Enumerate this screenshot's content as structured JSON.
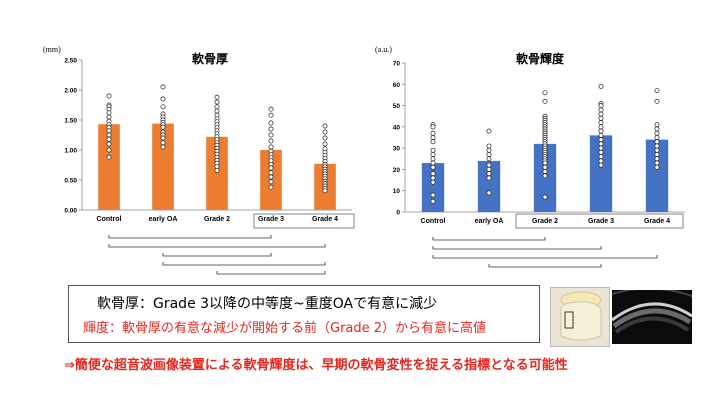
{
  "charts": {
    "left": {
      "unit": "(mm)",
      "title": "軟骨厚",
      "highlight_label": "Grade 3"
    },
    "right": {
      "unit": "(a.u.)",
      "title": "軟骨輝度",
      "highlight_label": "Grade 2"
    }
  },
  "chart_data": [
    {
      "type": "bar",
      "title": "軟骨厚",
      "ylabel": "(mm)",
      "categories": [
        "Control",
        "early OA",
        "Grade 2",
        "Grade 3",
        "Grade 4"
      ],
      "values": [
        1.43,
        1.44,
        1.22,
        1.0,
        0.77
      ],
      "ylim": [
        0,
        2.5
      ],
      "yticks": [
        0.0,
        0.5,
        1.0,
        1.5,
        2.0,
        2.5
      ],
      "ytick_labels": [
        "0.00",
        "0.50",
        "1.00",
        "1.50",
        "2.00",
        "2.50"
      ],
      "bar_color": "#ED7D31",
      "points": [
        [
          1.9,
          1.75,
          1.72,
          1.68,
          1.62,
          1.55,
          1.48,
          1.42,
          1.38,
          1.32,
          1.25,
          1.18,
          1.1,
          1.0,
          0.88
        ],
        [
          2.05,
          1.85,
          1.72,
          1.6,
          1.55,
          1.5,
          1.46,
          1.42,
          1.38,
          1.3,
          1.25,
          1.2,
          1.12,
          1.05
        ],
        [
          1.88,
          1.8,
          1.72,
          1.65,
          1.58,
          1.52,
          1.47,
          1.42,
          1.37,
          1.32,
          1.27,
          1.22,
          1.17,
          1.12,
          1.08,
          1.03,
          0.98,
          0.93,
          0.88,
          0.83,
          0.78,
          0.72,
          0.66
        ],
        [
          1.68,
          1.58,
          1.45,
          1.35,
          1.25,
          1.15,
          1.05,
          0.98,
          0.92,
          0.87,
          0.82,
          0.76,
          0.7,
          0.62,
          0.55,
          0.47,
          0.38
        ],
        [
          1.4,
          1.3,
          1.2,
          1.1,
          1.02,
          0.96,
          0.91,
          0.86,
          0.81,
          0.76,
          0.72,
          0.68,
          0.64,
          0.6,
          0.56,
          0.52,
          0.48,
          0.44,
          0.4,
          0.36,
          0.32
        ]
      ],
      "highlight": [
        "Grade 3",
        "Grade 4"
      ],
      "significance_brackets": [
        [
          "Control",
          "Grade 3"
        ],
        [
          "Control",
          "Grade 4"
        ],
        [
          "early OA",
          "Grade 3"
        ],
        [
          "early OA",
          "Grade 4"
        ],
        [
          "Grade 2",
          "Grade 4"
        ]
      ]
    },
    {
      "type": "bar",
      "title": "軟骨輝度",
      "ylabel": "(a.u.)",
      "categories": [
        "Control",
        "early OA",
        "Grade 2",
        "Grade 3",
        "Grade 4"
      ],
      "values": [
        23,
        24,
        32,
        36,
        34
      ],
      "ylim": [
        0,
        70
      ],
      "yticks": [
        0,
        10,
        20,
        30,
        40,
        50,
        60,
        70
      ],
      "ytick_labels": [
        "0",
        "10",
        "20",
        "30",
        "40",
        "50",
        "60",
        "70"
      ],
      "bar_color": "#4472C4",
      "points": [
        [
          41,
          40,
          37,
          35,
          33,
          29,
          27,
          25,
          23,
          21,
          18,
          16,
          14,
          8,
          5
        ],
        [
          38,
          31,
          29,
          27,
          25,
          22,
          20,
          18,
          16,
          9
        ],
        [
          56,
          52,
          45,
          44,
          43,
          42,
          41,
          40,
          39,
          38,
          37,
          36,
          35,
          34,
          33,
          32,
          31,
          30,
          29,
          28,
          27,
          26,
          25,
          24,
          23,
          21,
          19,
          17,
          7
        ],
        [
          59,
          51,
          50,
          48,
          46,
          44,
          42,
          40,
          38,
          36,
          34,
          32,
          30,
          28,
          26,
          24,
          22
        ],
        [
          57,
          52,
          41,
          39,
          37,
          35,
          33,
          31,
          29,
          27,
          25,
          23,
          21
        ]
      ],
      "highlight": [
        "Grade 2",
        "Grade 3",
        "Grade 4"
      ],
      "significance_brackets": [
        [
          "Control",
          "Grade 2"
        ],
        [
          "Control",
          "Grade 3"
        ],
        [
          "Control",
          "Grade 4"
        ],
        [
          "early OA",
          "Grade 3"
        ]
      ]
    }
  ],
  "summary": {
    "line1": "軟骨厚：Grade 3以降の中等度~重度OAで有意に減少",
    "line2": "輝度：軟骨厚の有意な減少が開始する前（Grade 2）から有意に高値",
    "conclusion": "⇒簡便な超音波画像装置による軟骨輝度は、早期の軟骨変性を捉える指標となる可能性"
  },
  "images": {
    "photo": "knee-joint-photo",
    "ultrasound": "ultrasound-image"
  }
}
